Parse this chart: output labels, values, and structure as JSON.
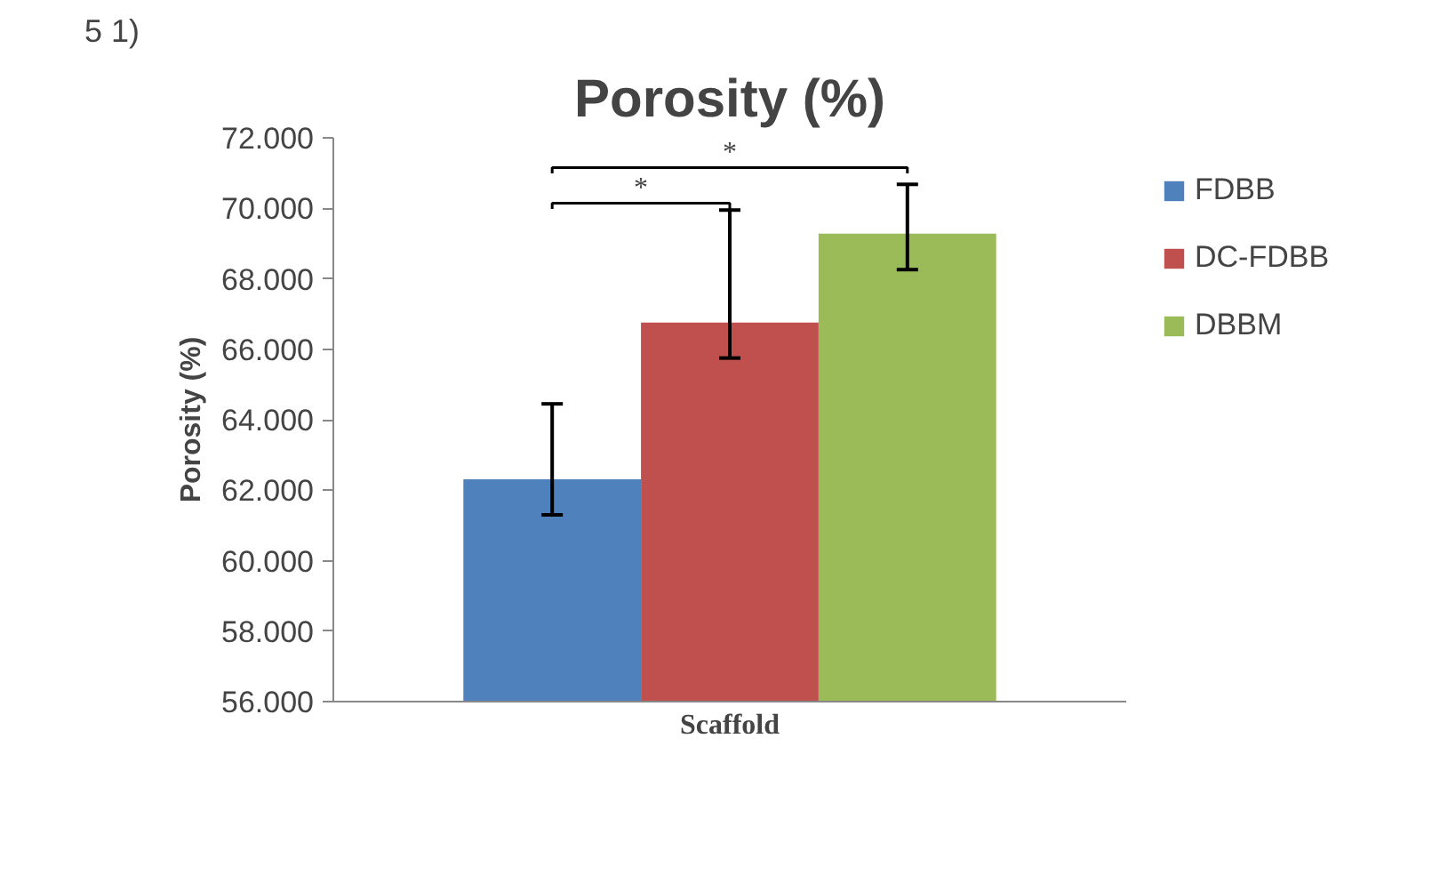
{
  "chart_data": {
    "type": "bar",
    "title": "Porosity (%)",
    "xlabel": "Scaffold",
    "ylabel": "Porosity (%)",
    "categories": [
      null
    ],
    "series": [
      {
        "name": "FDBB",
        "color": "#4f81bd",
        "values": [
          62.31
        ],
        "errors": [
          [
            61.3,
            64.45
          ]
        ]
      },
      {
        "name": "DC-FDBB",
        "color": "#c0504d",
        "values": [
          66.76
        ],
        "errors": [
          [
            65.75,
            69.95
          ]
        ]
      },
      {
        "name": "DBBM",
        "color": "#9bbb59",
        "values": [
          69.28
        ],
        "errors": [
          [
            68.26,
            70.68
          ]
        ]
      }
    ],
    "ylim": [
      56,
      72
    ],
    "yticks": [
      {
        "value": 56,
        "label": "56.000"
      },
      {
        "value": 58,
        "label": "58.000"
      },
      {
        "value": 60,
        "label": "60.000"
      },
      {
        "value": 62,
        "label": "62.000"
      },
      {
        "value": 64,
        "label": "64.000"
      },
      {
        "value": 66,
        "label": "66.000"
      },
      {
        "value": 68,
        "label": "68.000"
      },
      {
        "value": 70,
        "label": "70.000"
      },
      {
        "value": 72,
        "label": "72.000"
      }
    ],
    "grid": false,
    "legend": "right",
    "annotations": [
      "5 1)",
      "*",
      "*"
    ]
  }
}
